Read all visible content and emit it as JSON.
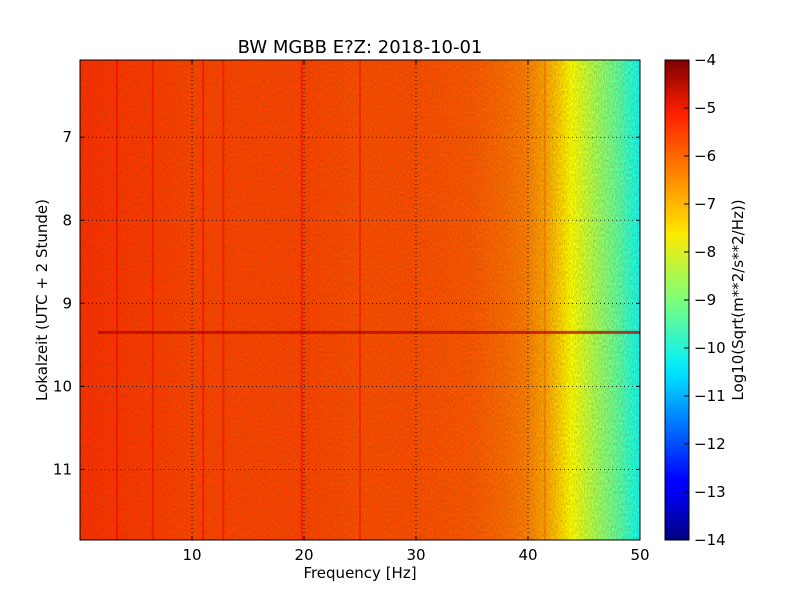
{
  "chart_data": {
    "type": "heatmap",
    "title": "BW MGBB E?Z: 2018-10-01",
    "xlabel": "Frequency [Hz]",
    "ylabel": "Lokalzeit (UTC + 2 Stunde)",
    "xlim": [
      0,
      50
    ],
    "ylim": [
      11.85,
      6.07
    ],
    "y_inverted": true,
    "xticks": [
      10,
      20,
      30,
      40,
      50
    ],
    "yticks": [
      7,
      8,
      9,
      10,
      11
    ],
    "grid": true,
    "colormap": "jet",
    "colorbar": {
      "label": "Log10(Sqrt(m**2/s**2/Hz))",
      "range": [
        -14,
        -4
      ],
      "ticks": [
        -4,
        -5,
        -6,
        -7,
        -8,
        -9,
        -10,
        -11,
        -12,
        -13,
        -14
      ]
    },
    "spectral_profile": {
      "frequency_hz": [
        0,
        5,
        10,
        15,
        20,
        25,
        30,
        35,
        38,
        40,
        42,
        44,
        46,
        48,
        50
      ],
      "level": [
        -5.7,
        -5.8,
        -5.9,
        -5.9,
        -5.9,
        -6.0,
        -6.0,
        -6.1,
        -6.3,
        -6.5,
        -7.0,
        -7.8,
        -8.6,
        -9.3,
        -10.2
      ]
    },
    "features": {
      "vertical_lines_hz": [
        3.3,
        6.5,
        11.0,
        12.8,
        19.8,
        25.0,
        41.5
      ],
      "horizontal_band_time": 9.35,
      "horizontal_band_level": -4.6
    }
  }
}
